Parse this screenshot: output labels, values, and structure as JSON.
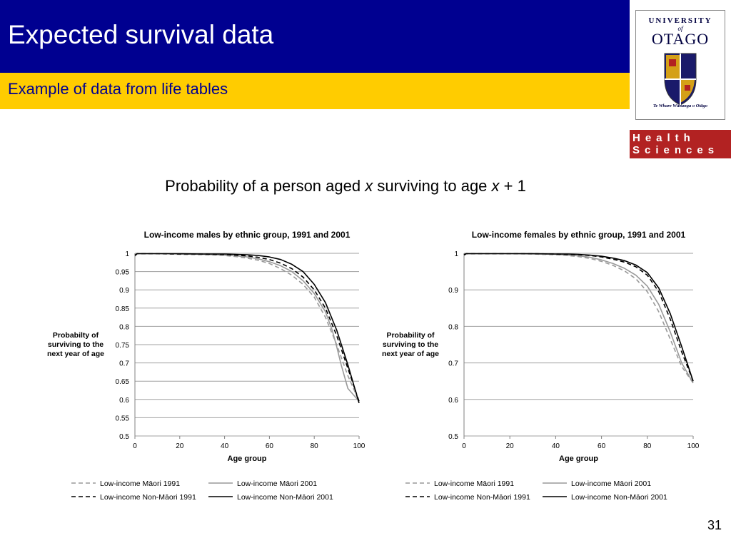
{
  "slide": {
    "title": "Expected survival data",
    "subtitle": "Example of data from life tables",
    "heading": {
      "part1": "Probability of a person aged ",
      "var1": "x",
      "part2": " surviving to age ",
      "var2": "x",
      "part3": " + 1"
    },
    "page_number": "31"
  },
  "logo": {
    "university_line": "UNIVERSITY",
    "of_line": "of",
    "name_line": "OTAGO",
    "motto_line": "Te Whare Wānanga o Otāgo",
    "health_line": "Health",
    "sciences_line": "Sciences"
  },
  "colors": {
    "title_bar": "#000090",
    "subtitle_bar": "#ffcc00",
    "maori_series": "#999999",
    "non_maori_series": "#000000",
    "logo_band": "#b22222"
  },
  "chart_data": [
    {
      "type": "line",
      "title": "Low-income males by ethnic group, 1991 and 2001",
      "xlabel": "Age group",
      "ylabel": "Probabilty of surviving to the next year of age",
      "xlim": [
        0,
        100
      ],
      "ylim": [
        0.5,
        1
      ],
      "xticks": [
        0,
        20,
        40,
        60,
        80,
        100
      ],
      "yticks": [
        0.5,
        0.55,
        0.6,
        0.65,
        0.7,
        0.75,
        0.8,
        0.85,
        0.9,
        0.95,
        1
      ],
      "ytick_labels": [
        "0.5",
        "0.55",
        "0.6",
        "0.65",
        "0.7",
        "0.75",
        "0.8",
        "0.85",
        "0.9",
        "0.95",
        "1"
      ],
      "grid": "horizontal",
      "legend": "bottom",
      "series": [
        {
          "name": "Low-income Māori 1991",
          "color": "#999999",
          "dash": "dashed",
          "x": [
            0,
            1,
            10,
            20,
            30,
            40,
            45,
            50,
            55,
            60,
            65,
            70,
            75,
            80,
            85,
            90,
            95,
            100
          ],
          "y": [
            0.992,
            0.999,
            0.999,
            0.997,
            0.996,
            0.994,
            0.991,
            0.987,
            0.981,
            0.972,
            0.958,
            0.94,
            0.915,
            0.88,
            0.825,
            0.75,
            0.665,
            0.595
          ]
        },
        {
          "name": "Low-income Māori 2001",
          "color": "#999999",
          "dash": "solid",
          "x": [
            0,
            1,
            10,
            20,
            30,
            40,
            45,
            50,
            55,
            60,
            65,
            70,
            75,
            80,
            85,
            88,
            90,
            92,
            95,
            100
          ],
          "y": [
            0.993,
            0.999,
            0.999,
            0.998,
            0.997,
            0.995,
            0.993,
            0.99,
            0.985,
            0.977,
            0.966,
            0.95,
            0.925,
            0.89,
            0.84,
            0.79,
            0.745,
            0.695,
            0.63,
            0.595
          ]
        },
        {
          "name": "Low-income Non-Māori 1991",
          "color": "#000000",
          "dash": "dashed",
          "x": [
            0,
            1,
            10,
            20,
            30,
            40,
            45,
            50,
            55,
            60,
            65,
            70,
            75,
            80,
            85,
            90,
            95,
            100
          ],
          "y": [
            0.994,
            0.999,
            0.999,
            0.998,
            0.998,
            0.997,
            0.995,
            0.993,
            0.989,
            0.983,
            0.973,
            0.958,
            0.935,
            0.9,
            0.85,
            0.775,
            0.685,
            0.595
          ]
        },
        {
          "name": "Low-income Non-Māori 2001",
          "color": "#000000",
          "dash": "solid",
          "x": [
            0,
            1,
            10,
            20,
            30,
            40,
            45,
            50,
            55,
            60,
            65,
            70,
            75,
            80,
            85,
            90,
            95,
            100
          ],
          "y": [
            0.995,
            0.999,
            0.999,
            0.999,
            0.998,
            0.998,
            0.997,
            0.996,
            0.994,
            0.99,
            0.983,
            0.97,
            0.95,
            0.915,
            0.865,
            0.79,
            0.695,
            0.59
          ]
        }
      ]
    },
    {
      "type": "line",
      "title": "Low-income females by ethnic group, 1991 and 2001",
      "xlabel": "Age group",
      "ylabel": "Probability of surviving to the next year of age",
      "xlim": [
        0,
        100
      ],
      "ylim": [
        0.5,
        1
      ],
      "xticks": [
        0,
        20,
        40,
        60,
        80,
        100
      ],
      "yticks": [
        0.5,
        0.6,
        0.7,
        0.8,
        0.9,
        1
      ],
      "ytick_labels": [
        "0.5",
        "0.6",
        "0.7",
        "0.8",
        "0.9",
        "1"
      ],
      "grid": "horizontal",
      "legend": "bottom",
      "series": [
        {
          "name": "Low-income Māori 1991",
          "color": "#999999",
          "dash": "dashed",
          "x": [
            0,
            1,
            10,
            20,
            30,
            40,
            45,
            50,
            55,
            60,
            65,
            70,
            75,
            80,
            85,
            90,
            95,
            100
          ],
          "y": [
            0.994,
            0.999,
            0.999,
            0.999,
            0.998,
            0.996,
            0.994,
            0.991,
            0.986,
            0.978,
            0.967,
            0.952,
            0.93,
            0.895,
            0.84,
            0.765,
            0.69,
            0.645
          ]
        },
        {
          "name": "Low-income Māori 2001",
          "color": "#999999",
          "dash": "solid",
          "x": [
            0,
            1,
            10,
            20,
            30,
            40,
            45,
            50,
            55,
            60,
            65,
            70,
            75,
            80,
            85,
            90,
            95,
            100
          ],
          "y": [
            0.995,
            0.999,
            0.999,
            0.999,
            0.998,
            0.997,
            0.995,
            0.993,
            0.989,
            0.982,
            0.972,
            0.959,
            0.94,
            0.91,
            0.86,
            0.785,
            0.7,
            0.645
          ]
        },
        {
          "name": "Low-income Non-Māori 1991",
          "color": "#000000",
          "dash": "dashed",
          "x": [
            0,
            1,
            10,
            20,
            30,
            40,
            45,
            50,
            55,
            60,
            65,
            70,
            75,
            80,
            85,
            90,
            95,
            100
          ],
          "y": [
            0.996,
            0.999,
            0.999,
            0.999,
            0.999,
            0.998,
            0.997,
            0.996,
            0.994,
            0.99,
            0.984,
            0.976,
            0.963,
            0.94,
            0.895,
            0.82,
            0.73,
            0.65
          ]
        },
        {
          "name": "Low-income Non-Māori 2001",
          "color": "#000000",
          "dash": "solid",
          "x": [
            0,
            1,
            10,
            20,
            30,
            40,
            45,
            50,
            55,
            60,
            65,
            70,
            75,
            80,
            85,
            90,
            95,
            100
          ],
          "y": [
            0.996,
            0.999,
            0.999,
            0.999,
            0.999,
            0.998,
            0.998,
            0.997,
            0.995,
            0.992,
            0.987,
            0.98,
            0.968,
            0.947,
            0.905,
            0.835,
            0.745,
            0.65
          ]
        }
      ]
    }
  ]
}
